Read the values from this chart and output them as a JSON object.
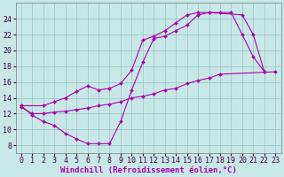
{
  "background_color": "#c8e8e8",
  "grid_color": "#a0c8c8",
  "line_color": "#aa00aa",
  "marker_color": "#aa00aa",
  "xlabel": "Windchill (Refroidissement éolien,°C)",
  "xlim": [
    -0.5,
    23.5
  ],
  "ylim": [
    7.0,
    26.0
  ],
  "yticks": [
    8,
    10,
    12,
    14,
    16,
    18,
    20,
    22,
    24
  ],
  "xticks": [
    0,
    1,
    2,
    3,
    4,
    5,
    6,
    7,
    8,
    9,
    10,
    11,
    12,
    13,
    14,
    15,
    16,
    17,
    18,
    19,
    20,
    21,
    22,
    23
  ],
  "curve1_x": [
    0,
    1,
    2,
    3,
    4,
    5,
    6,
    7,
    8,
    9,
    10,
    11,
    12,
    13,
    14,
    15,
    16,
    17,
    18,
    19,
    20,
    21,
    22
  ],
  "curve1_y": [
    13.0,
    11.8,
    11.0,
    10.5,
    9.5,
    8.8,
    8.2,
    8.2,
    8.2,
    11.0,
    15.0,
    18.5,
    21.5,
    21.8,
    22.5,
    23.2,
    24.5,
    24.8,
    24.8,
    24.8,
    22.0,
    19.2,
    17.3
  ],
  "curve2_x": [
    0,
    1,
    2,
    3,
    4,
    5,
    6,
    7,
    8,
    9,
    10,
    11,
    12,
    13,
    14,
    15,
    16,
    17,
    18,
    23
  ],
  "curve2_y": [
    12.8,
    12.0,
    12.0,
    12.2,
    12.3,
    12.5,
    12.7,
    13.0,
    13.2,
    13.5,
    14.0,
    14.2,
    14.5,
    15.0,
    15.2,
    15.8,
    16.2,
    16.5,
    17.0,
    17.3
  ],
  "curve3_x": [
    0,
    2,
    3,
    4,
    5,
    6,
    7,
    8,
    9,
    10,
    11,
    12,
    13,
    14,
    15,
    16,
    17,
    20,
    21,
    22
  ],
  "curve3_y": [
    13.0,
    13.0,
    13.5,
    14.0,
    14.8,
    15.5,
    15.0,
    15.2,
    15.8,
    17.5,
    21.3,
    21.8,
    22.5,
    23.5,
    24.5,
    24.8,
    24.8,
    24.5,
    22.0,
    17.3
  ],
  "xlabel_fontsize": 6.5,
  "tick_fontsize": 6.0,
  "linewidth": 0.8,
  "markersize": 2.0
}
